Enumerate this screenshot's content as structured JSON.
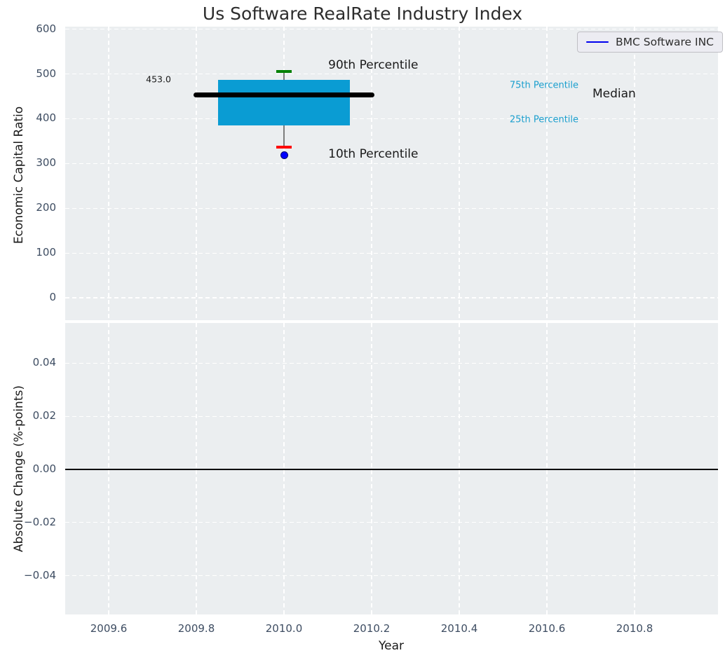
{
  "title": "Us Software RealRate Industry Index",
  "legend": {
    "label": "BMC Software INC",
    "line_color": "#0000ee"
  },
  "colors": {
    "plot_bg": "#ebeef0",
    "grid": "#ffffff",
    "tick_label": "#3e4d62",
    "axis_label": "#1a1a1a",
    "box_fill": "#0a9cd3",
    "median_line": "#000000",
    "whisker": "#7d7d7d",
    "p90_cap": "#008000",
    "p10_cap": "#ff0000",
    "point": "#0000ff",
    "point_edge": "#000070",
    "percentile_text": "#1b9fce",
    "zero_line": "#000000"
  },
  "chart_data": [
    {
      "type": "boxplot",
      "title": "Us Software RealRate Industry Index",
      "ylabel": "Economic Capital Ratio",
      "xlim": [
        2009.5,
        2010.99
      ],
      "ylim": [
        -50,
        606
      ],
      "grid": true,
      "legend_position": "upper right",
      "yticks": [
        0,
        100,
        200,
        300,
        400,
        500,
        600
      ],
      "ytick_labels": [
        "0",
        "100",
        "200",
        "300",
        "400",
        "500",
        "600"
      ],
      "box": {
        "x": 2010.0,
        "p90": 506,
        "p75": 487,
        "median": 453,
        "p25": 385,
        "p10": 337,
        "median_label": "453.0",
        "box_half_width": 0.15,
        "median_half_width": 0.206,
        "cap_half_width": 0.0176
      },
      "series": [
        {
          "name": "BMC Software INC",
          "x": 2010.0,
          "y": 319,
          "marker": "circle"
        }
      ],
      "annotations": [
        {
          "text": "453.0",
          "x": 2009.685,
          "y": 489,
          "size": 12.5,
          "color": "#1a1a1a"
        },
        {
          "text": "90th Percentile",
          "x": 2010.101,
          "y": 519,
          "size": 17,
          "color": "#1a1a1a"
        },
        {
          "text": "10th Percentile",
          "x": 2010.101,
          "y": 321,
          "size": 17,
          "color": "#1a1a1a"
        },
        {
          "text": "75th Percentile",
          "x": 2010.515,
          "y": 475,
          "size": 13,
          "color": "#1b9fce"
        },
        {
          "text": "25th Percentile",
          "x": 2010.515,
          "y": 398,
          "size": 13,
          "color": "#1b9fce"
        },
        {
          "text": "Median",
          "x": 2010.704,
          "y": 455,
          "size": 17,
          "color": "#1a1a1a"
        }
      ]
    },
    {
      "type": "line",
      "ylabel": "Absolute Change (%-points)",
      "xlabel": "Year",
      "xlim": [
        2009.5,
        2010.99
      ],
      "ylim": [
        -0.055,
        0.055
      ],
      "grid": true,
      "yticks": [
        -0.04,
        -0.02,
        0,
        0.02,
        0.04
      ],
      "ytick_labels": [
        "−0.04",
        "−0.02",
        "0.00",
        "0.02",
        "0.04"
      ],
      "xticks": [
        2009.6,
        2009.8,
        2010.0,
        2010.2,
        2010.4,
        2010.6,
        2010.8
      ],
      "xtick_labels": [
        "2009.6",
        "2009.8",
        "2010.0",
        "2010.2",
        "2010.4",
        "2010.6",
        "2010.8"
      ],
      "zero_line_y": 0.0,
      "series": []
    }
  ]
}
